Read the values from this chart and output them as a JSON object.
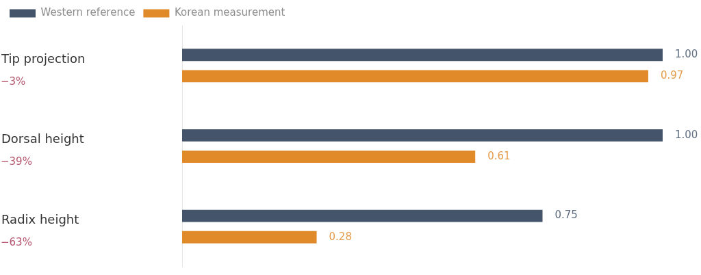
{
  "chart_data": {
    "type": "bar",
    "orientation": "horizontal",
    "categories": [
      "Tip projection",
      "Dorsal height",
      "Radix height"
    ],
    "series": [
      {
        "name": "Western reference",
        "color": "#44546a",
        "values": [
          1,
          1,
          0.75
        ],
        "value_labels": [
          "1.00",
          "1.00",
          "0.75"
        ]
      },
      {
        "name": "Korean measurement",
        "color": "#e08a2a",
        "values": [
          0.97,
          0.61,
          0.28
        ],
        "value_labels": [
          "0.97",
          "0.61",
          "0.28"
        ]
      }
    ],
    "xlim": [
      0,
      1
    ],
    "tick_labels": "y",
    "legend": "top left",
    "grid": false,
    "annotations": [
      "−3%",
      "−39%",
      "−63%"
    ]
  }
}
